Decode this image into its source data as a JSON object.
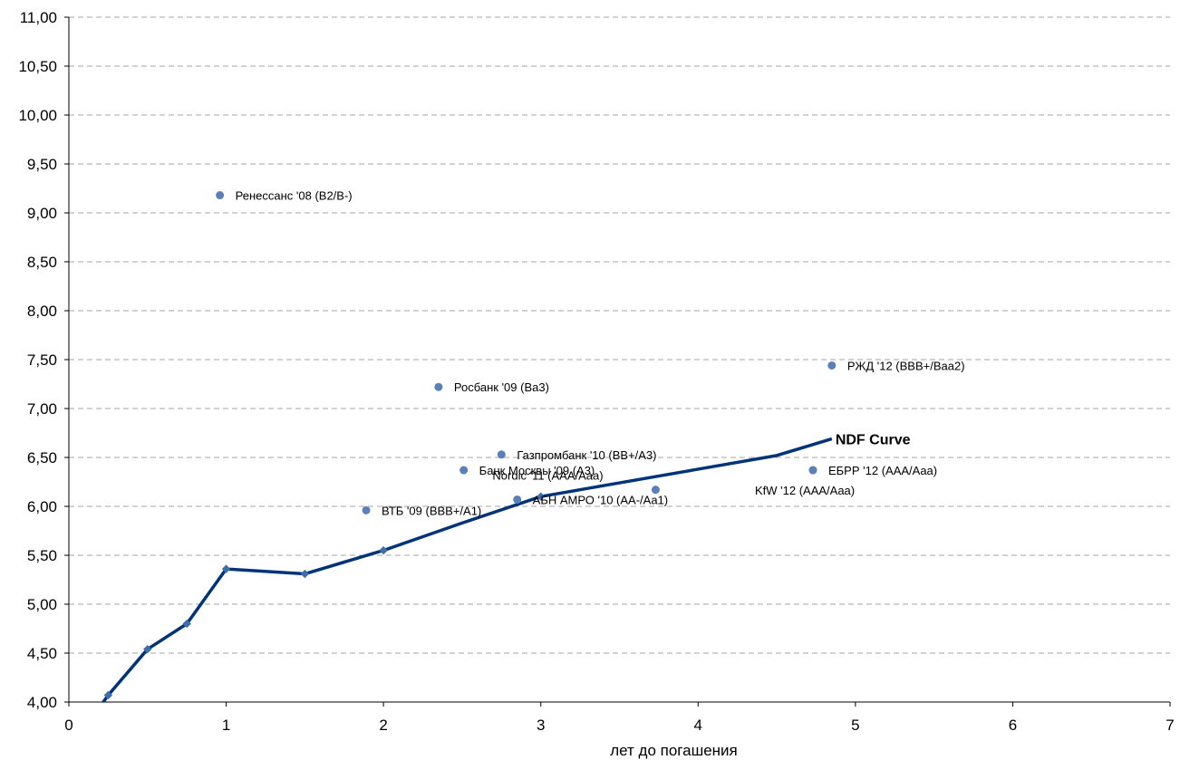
{
  "chart_data": {
    "type": "scatter",
    "xlabel": "лет до погашения",
    "ylabel": "",
    "xlim": [
      0,
      7
    ],
    "ylim": [
      4,
      11
    ],
    "x_ticks": [
      0,
      1,
      2,
      3,
      4,
      5,
      6,
      7
    ],
    "x_tick_labels": [
      "0",
      "1",
      "2",
      "3",
      "4",
      "5",
      "6",
      "7"
    ],
    "y_ticks": [
      4,
      4.5,
      5,
      5.5,
      6,
      6.5,
      7,
      7.5,
      8,
      8.5,
      9,
      9.5,
      10,
      10.5,
      11
    ],
    "y_tick_labels": [
      "4,00",
      "4,50",
      "5,00",
      "5,50",
      "6,00",
      "6,50",
      "7,00",
      "7,50",
      "8,00",
      "8,50",
      "9,00",
      "9,50",
      "10,00",
      "10,50",
      "11,00"
    ],
    "grid": "horizontal dashed",
    "series": [
      {
        "name": "NDF Curve",
        "kind": "line",
        "color": "#003378",
        "x": [
          0.21,
          0.25,
          0.5,
          0.75,
          1.0,
          1.5,
          2.0,
          2.5,
          3.0,
          3.5,
          4.0,
          4.5,
          4.85
        ],
        "y": [
          3.98,
          4.07,
          4.54,
          4.8,
          5.36,
          5.31,
          5.55,
          5.83,
          6.1,
          6.24,
          6.38,
          6.52,
          6.69
        ],
        "markers_x": [
          0.25,
          0.5,
          0.75,
          1.0,
          1.5,
          2.0,
          3.0
        ],
        "markers_y": [
          4.07,
          4.54,
          4.8,
          5.36,
          5.31,
          5.55,
          6.1
        ],
        "end_label": "NDF Curve"
      },
      {
        "kind": "scatter",
        "color": "#5b7fb8",
        "points": [
          {
            "x": 0.96,
            "y": 9.18,
            "label": "Ренессанс '08 (B2/B-)",
            "label_pos": "right"
          },
          {
            "x": 2.35,
            "y": 7.22,
            "label": "Росбанк '09 (Ba3)",
            "label_pos": "right"
          },
          {
            "x": 4.85,
            "y": 7.44,
            "label": "РЖД '12 (BBB+/Baa2)",
            "label_pos": "right"
          },
          {
            "x": 2.75,
            "y": 6.53,
            "label": "Газпромбанк '10 (BB+/A3)",
            "label_pos": "right"
          },
          {
            "x": 2.51,
            "y": 6.37,
            "label": "Банк Москвы '09 (A3)",
            "label_pos": "right"
          },
          {
            "x": 3.73,
            "y": 6.17,
            "label": "Nordic '11 (AAA/Aaa)",
            "label_pos": "above-left"
          },
          {
            "x": 4.73,
            "y": 6.37,
            "label": "ЕБРР '12 (AAA/Aaa)",
            "label_pos": "right"
          },
          {
            "x": 4.73,
            "y": 6.37,
            "label": "KfW '12 (AAA/Aaa)",
            "label_pos": "below-left"
          },
          {
            "x": 1.89,
            "y": 5.96,
            "label": "ВТБ '09 (BBB+/A1)",
            "label_pos": "right"
          },
          {
            "x": 2.85,
            "y": 6.07,
            "label": "АБН АМРО '10 (AA-/Aa1)",
            "label_pos": "right"
          }
        ]
      }
    ]
  }
}
